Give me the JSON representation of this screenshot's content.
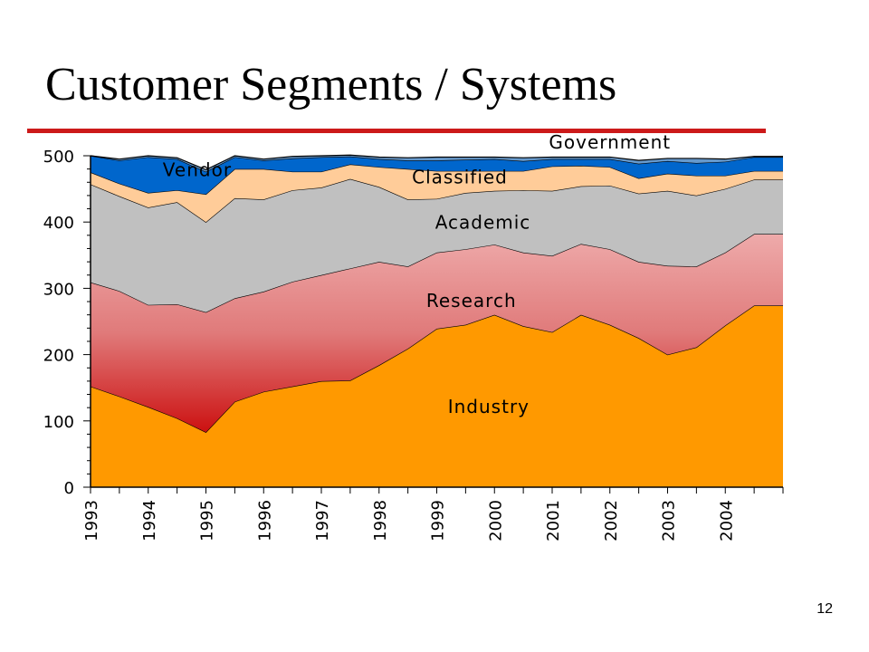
{
  "slide": {
    "title": "Customer Segments / Systems",
    "page_number": "12",
    "rule_color": "#cc1a1a"
  },
  "chart_data": {
    "type": "area",
    "stacked": true,
    "title": "",
    "xlabel": "",
    "ylabel": "",
    "ylim": [
      0,
      500
    ],
    "yticks": [
      0,
      100,
      200,
      300,
      400,
      500
    ],
    "grid": false,
    "x": [
      1993.0,
      1993.5,
      1994.0,
      1994.5,
      1995.0,
      1995.5,
      1996.0,
      1996.5,
      1997.0,
      1997.5,
      1998.0,
      1998.5,
      1999.0,
      1999.5,
      2000.0,
      2000.5,
      2001.0,
      2001.5,
      2002.0,
      2002.5,
      2003.0,
      2003.5,
      2004.0,
      2004.5
    ],
    "xticks": [
      "1993",
      "1994",
      "1995",
      "1996",
      "1997",
      "1998",
      "1999",
      "2000",
      "2001",
      "2002",
      "2003",
      "2004"
    ],
    "series": [
      {
        "name": "Industry",
        "color": "#ff9900",
        "values": [
          152,
          137,
          121,
          104,
          83,
          129,
          144,
          152,
          160,
          161,
          184,
          209,
          239,
          245,
          260,
          243,
          234,
          260,
          245,
          225,
          200,
          211,
          244,
          274
        ]
      },
      {
        "name": "Research",
        "color": "#e06a6a",
        "values": [
          157,
          159,
          154,
          172,
          181,
          156,
          151,
          158,
          160,
          169,
          156,
          124,
          115,
          114,
          106,
          111,
          115,
          107,
          114,
          115,
          134,
          122,
          110,
          108
        ]
      },
      {
        "name": "Academic",
        "color": "#c0c0c0",
        "values": [
          148,
          143,
          147,
          154,
          136,
          151,
          139,
          138,
          132,
          135,
          113,
          101,
          81,
          85,
          81,
          94,
          98,
          87,
          96,
          103,
          113,
          107,
          96,
          82
        ]
      },
      {
        "name": "Classified",
        "color": "#ffcc99",
        "values": [
          18,
          19,
          22,
          18,
          42,
          44,
          46,
          28,
          24,
          22,
          30,
          46,
          42,
          33,
          30,
          29,
          37,
          31,
          28,
          23,
          26,
          30,
          20,
          13
        ]
      },
      {
        "name": "Vendor",
        "color": "#0066cc",
        "values": [
          25,
          35,
          54,
          47,
          34,
          18,
          13,
          20,
          22,
          12,
          12,
          13,
          16,
          17,
          18,
          15,
          11,
          10,
          12,
          22,
          19,
          19,
          21,
          21
        ]
      },
      {
        "name": "Government",
        "color": "#6699cc",
        "values": [
          0,
          2,
          2,
          2,
          3,
          2,
          2,
          3,
          2,
          2,
          3,
          4,
          5,
          4,
          3,
          5,
          3,
          3,
          3,
          5,
          4,
          7,
          4,
          1
        ]
      }
    ]
  }
}
